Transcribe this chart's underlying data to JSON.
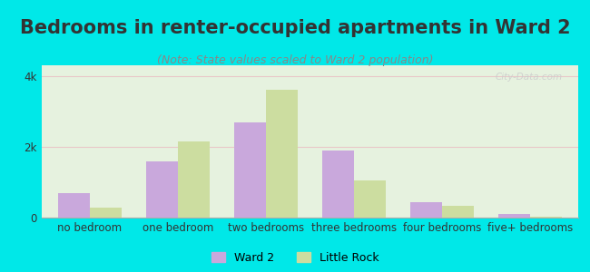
{
  "title": "Bedrooms in renter-occupied apartments in Ward 2",
  "subtitle": "(Note: State values scaled to Ward 2 population)",
  "categories": [
    "no bedroom",
    "one bedroom",
    "two bedrooms",
    "three bedrooms",
    "four bedrooms",
    "five+ bedrooms"
  ],
  "ward2_values": [
    700,
    1580,
    2700,
    1900,
    440,
    110
  ],
  "little_rock_values": [
    280,
    2150,
    3600,
    1050,
    320,
    35
  ],
  "ward2_color": "#c9a8dc",
  "little_rock_color": "#ccdda0",
  "background_color": "#e6f2df",
  "outer_background": "#00e8e8",
  "ylim": [
    0,
    4300
  ],
  "ytick_labels": [
    "0",
    "2k",
    "4k"
  ],
  "ytick_values": [
    0,
    2000,
    4000
  ],
  "bar_width": 0.36,
  "watermark": "City-Data.com",
  "legend_ward2": "Ward 2",
  "legend_little_rock": "Little Rock",
  "title_fontsize": 15,
  "subtitle_fontsize": 9,
  "tick_fontsize": 8.5,
  "grid_color": "#e8c8c8",
  "text_color": "#333333",
  "subtitle_color": "#888888"
}
